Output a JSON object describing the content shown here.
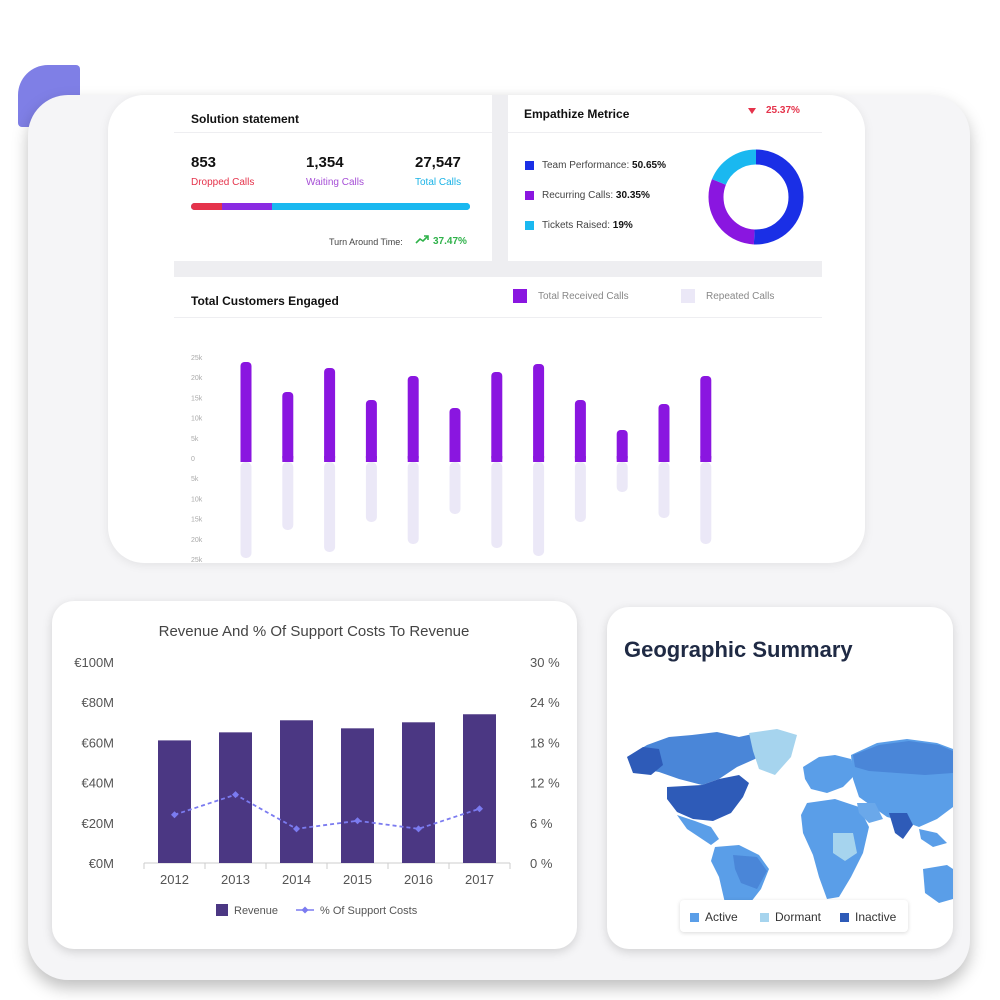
{
  "solution": {
    "title": "Solution statement",
    "stats": [
      {
        "value": "853",
        "label": "Dropped Calls",
        "color": "#e5334b"
      },
      {
        "value": "1,354",
        "label": "Waiting Calls",
        "color": "#a64fd6"
      },
      {
        "value": "27,547",
        "label": "Total Calls",
        "color": "#1ab3e6"
      }
    ],
    "turnaround_label": "Turn Around Time:",
    "turnaround_value": "37.47%",
    "trend_color": "#2fb24a"
  },
  "empathize": {
    "title": "Empathize Metrice",
    "change": "25.37%",
    "change_color": "#e5334b",
    "items": [
      {
        "label": "Team Performance:",
        "value": "50.65%",
        "color": "#1a2fe6"
      },
      {
        "label": "Recurring Calls:",
        "value": "30.35%",
        "color": "#8a16e0"
      },
      {
        "label": "Tickets Raised:",
        "value": "19%",
        "color": "#1ab8f0"
      }
    ]
  },
  "engaged": {
    "title": "Total Customers Engaged",
    "legend": [
      {
        "label": "Total Received Calls",
        "color": "#8a16e0"
      },
      {
        "label": "Repeated Calls",
        "color": "#ebe8f7"
      }
    ],
    "chart_data": {
      "type": "bar",
      "y_ticks": [
        "25k",
        "20k",
        "15k",
        "10k",
        "5k",
        "0",
        "5k",
        "10k",
        "15k",
        "20k",
        "25k"
      ],
      "ylim": [
        -25000,
        25000
      ],
      "series": [
        {
          "name": "Total Received Calls",
          "values": [
            25000,
            17500,
            23500,
            15500,
            21500,
            13500,
            22500,
            24500,
            15500,
            8000,
            14500,
            21500
          ]
        },
        {
          "name": "Repeated Calls",
          "values": [
            -24000,
            -17000,
            -22500,
            -15000,
            -20500,
            -13000,
            -21500,
            -23500,
            -15000,
            -7500,
            -14000,
            -20500
          ]
        }
      ]
    }
  },
  "revenue": {
    "title": "Revenue And % Of Support Costs To Revenue",
    "legend": [
      {
        "label": "Revenue",
        "color": "#4b3783"
      },
      {
        "label": "% Of Support Costs",
        "color": "#7b7bf0"
      }
    ],
    "chart_data": {
      "type": "bar",
      "categories": [
        "2012",
        "2013",
        "2014",
        "2015",
        "2016",
        "2017"
      ],
      "y_ticks": [
        "€100M",
        "€80M",
        "€60M",
        "€40M",
        "€20M",
        "€0M"
      ],
      "y2_ticks": [
        "30 %",
        "24 %",
        "18 %",
        "12 %",
        "6 %",
        "0 %"
      ],
      "ylim": [
        0,
        100
      ],
      "y2lim": [
        0,
        30
      ],
      "series": [
        {
          "name": "Revenue",
          "type": "bar",
          "values": [
            61,
            65,
            71,
            67,
            70,
            74
          ]
        },
        {
          "name": "% Of Support Costs",
          "type": "line",
          "values": [
            7.2,
            10.2,
            5.1,
            6.3,
            5.1,
            8.1
          ]
        }
      ]
    }
  },
  "geo": {
    "title": "Geographic Summary",
    "legend": [
      {
        "label": "Active",
        "color": "#5a9ee8"
      },
      {
        "label": "Dormant",
        "color": "#a6d4ee"
      },
      {
        "label": "Inactive",
        "color": "#2e5bb8"
      }
    ]
  }
}
